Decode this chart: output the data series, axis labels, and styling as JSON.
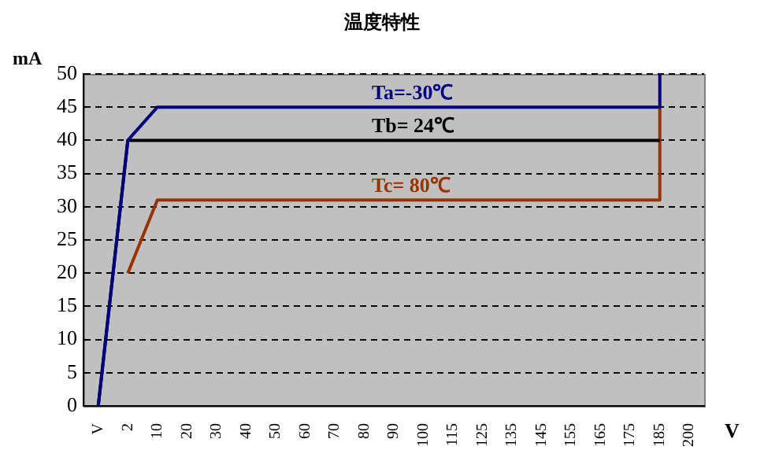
{
  "chart_data": {
    "type": "line",
    "title": "温度特性",
    "ylabel": "mA",
    "xlabel": "V",
    "categories": [
      "V",
      "2",
      "10",
      "20",
      "30",
      "40",
      "50",
      "60",
      "70",
      "80",
      "90",
      "100",
      "115",
      "125",
      "135",
      "145",
      "155",
      "165",
      "175",
      "185",
      "200"
    ],
    "series": [
      {
        "name": "Ta=-30℃",
        "color": "#000080",
        "x": [
          "V",
          "2",
          "10",
          "185",
          "185"
        ],
        "values": [
          0,
          40,
          45,
          45,
          50
        ]
      },
      {
        "name": "Tb= 24℃",
        "color": "#000000",
        "x": [
          "V",
          "2",
          "185"
        ],
        "values": [
          0,
          40,
          40
        ]
      },
      {
        "name": "Tc= 80℃",
        "color": "#993300",
        "x": [
          "2",
          "10",
          "185",
          "185"
        ],
        "values": [
          20,
          31,
          31,
          45
        ]
      }
    ],
    "ylim": [
      0,
      50
    ],
    "yticks": [
      0,
      5,
      10,
      15,
      20,
      25,
      30,
      35,
      40,
      45,
      50
    ],
    "grid": "y",
    "legend": false,
    "marker": "none",
    "line_style": "solid"
  }
}
